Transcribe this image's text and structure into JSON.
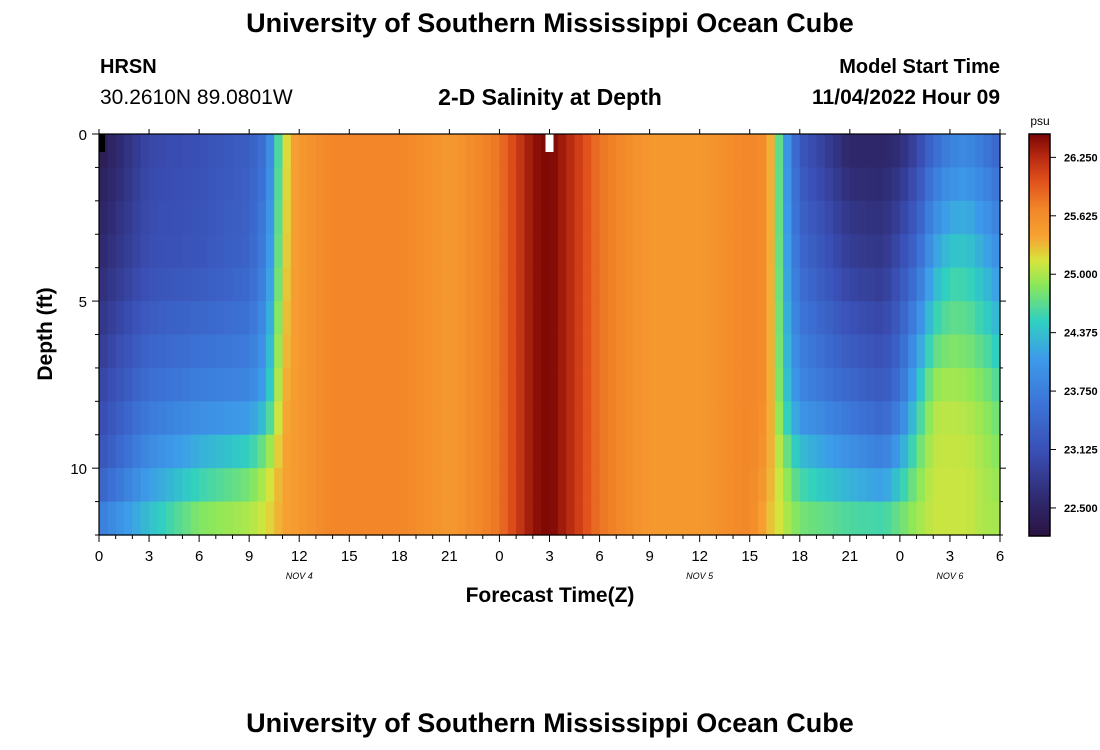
{
  "header": {
    "title": "University of Southern Mississippi Ocean Cube",
    "station": "HRSN",
    "coordinates": "30.2610N  89.0801W",
    "subtitle": "2-D Salinity at Depth",
    "model_start_label": "Model Start Time",
    "model_start_value": "11/04/2022 Hour 09"
  },
  "footer": {
    "title": "University of Southern Mississippi Ocean Cube"
  },
  "chart_data": {
    "type": "heatmap",
    "title": "2-D Salinity at Depth",
    "xlabel": "Forecast Time(Z)",
    "ylabel": "Depth (ft)",
    "x_range_hours": [
      0,
      54
    ],
    "y_range_ft": [
      0,
      12
    ],
    "x_ticks": [
      {
        "hour": 0,
        "label": "0"
      },
      {
        "hour": 3,
        "label": "3"
      },
      {
        "hour": 6,
        "label": "6"
      },
      {
        "hour": 9,
        "label": "9"
      },
      {
        "hour": 12,
        "label": "12"
      },
      {
        "hour": 15,
        "label": "15"
      },
      {
        "hour": 18,
        "label": "18"
      },
      {
        "hour": 21,
        "label": "21"
      },
      {
        "hour": 24,
        "label": "0"
      },
      {
        "hour": 27,
        "label": "3"
      },
      {
        "hour": 30,
        "label": "6"
      },
      {
        "hour": 33,
        "label": "9"
      },
      {
        "hour": 36,
        "label": "12"
      },
      {
        "hour": 39,
        "label": "15"
      },
      {
        "hour": 42,
        "label": "18"
      },
      {
        "hour": 45,
        "label": "21"
      },
      {
        "hour": 48,
        "label": "0"
      },
      {
        "hour": 51,
        "label": "3"
      },
      {
        "hour": 54,
        "label": "6"
      }
    ],
    "y_ticks": [
      {
        "depth": 0,
        "label": "0"
      },
      {
        "depth": 5,
        "label": "5"
      },
      {
        "depth": 10,
        "label": "10"
      }
    ],
    "date_labels": [
      {
        "hour": 12,
        "label": "NOV 4"
      },
      {
        "hour": 36,
        "label": "NOV 5"
      },
      {
        "hour": 51,
        "label": "NOV 6"
      }
    ],
    "current_time_marker_hour": 27,
    "colorbar": {
      "units": "psu",
      "min": 22.2,
      "max": 26.5,
      "tick_values": [
        22.5,
        23.125,
        23.75,
        24.375,
        25.0,
        25.625,
        26.25
      ],
      "tick_labels": [
        "22.500",
        "23.125",
        "23.750",
        "24.375",
        "25.000",
        "25.625",
        "26.250"
      ]
    },
    "color_stops": [
      {
        "value": 22.2,
        "color": "#2a1440"
      },
      {
        "value": 22.6,
        "color": "#2f2a70"
      },
      {
        "value": 23.1,
        "color": "#3a4fb5"
      },
      {
        "value": 23.6,
        "color": "#3c73d6"
      },
      {
        "value": 24.1,
        "color": "#3d9bea"
      },
      {
        "value": 24.5,
        "color": "#30d0c0"
      },
      {
        "value": 24.9,
        "color": "#8ee858"
      },
      {
        "value": 25.15,
        "color": "#d8e43c"
      },
      {
        "value": 25.4,
        "color": "#f7a233"
      },
      {
        "value": 25.7,
        "color": "#f28628"
      },
      {
        "value": 26.0,
        "color": "#e0501c"
      },
      {
        "value": 26.25,
        "color": "#b72a10"
      },
      {
        "value": 26.5,
        "color": "#7a0505"
      }
    ],
    "salinity_time_hours": [
      0,
      3,
      6,
      9,
      10,
      10.5,
      11,
      11.5,
      12,
      14,
      18,
      21,
      24,
      25,
      26,
      27,
      28,
      29,
      30,
      33,
      36,
      39,
      40,
      40.5,
      41,
      41.5,
      42,
      45,
      47,
      48,
      49,
      50,
      51,
      52,
      53,
      54
    ],
    "salinity_depths_ft": [
      0,
      4,
      8,
      10,
      12
    ],
    "salinity_psu": [
      [
        22.3,
        22.6,
        23.0,
        23.2,
        23.9
      ],
      [
        23.0,
        23.1,
        23.6,
        24.0,
        24.5
      ],
      [
        23.1,
        23.2,
        23.8,
        24.4,
        25.0
      ],
      [
        23.3,
        23.4,
        23.9,
        24.7,
        25.1
      ],
      [
        23.6,
        23.8,
        24.2,
        25.0,
        25.2
      ],
      [
        24.2,
        24.4,
        24.8,
        25.2,
        25.3
      ],
      [
        25.0,
        25.1,
        25.3,
        25.4,
        25.4
      ],
      [
        25.35,
        25.4,
        25.45,
        25.45,
        25.45
      ],
      [
        25.5,
        25.5,
        25.5,
        25.5,
        25.5
      ],
      [
        25.7,
        25.7,
        25.7,
        25.7,
        25.7
      ],
      [
        25.7,
        25.7,
        25.7,
        25.7,
        25.7
      ],
      [
        25.5,
        25.5,
        25.5,
        25.5,
        25.5
      ],
      [
        25.8,
        25.8,
        25.8,
        25.8,
        25.8
      ],
      [
        26.1,
        26.1,
        26.1,
        26.1,
        26.1
      ],
      [
        26.4,
        26.4,
        26.4,
        26.4,
        26.4
      ],
      [
        26.5,
        26.5,
        26.5,
        26.5,
        26.5
      ],
      [
        26.3,
        26.3,
        26.3,
        26.3,
        26.3
      ],
      [
        26.05,
        26.05,
        26.05,
        26.05,
        26.05
      ],
      [
        25.8,
        25.8,
        25.8,
        25.8,
        25.8
      ],
      [
        25.5,
        25.5,
        25.5,
        25.5,
        25.5
      ],
      [
        25.5,
        25.5,
        25.5,
        25.5,
        25.5
      ],
      [
        25.7,
        25.7,
        25.7,
        25.7,
        25.7
      ],
      [
        25.6,
        25.6,
        25.6,
        25.5,
        25.3
      ],
      [
        25.1,
        25.1,
        25.1,
        25.2,
        25.2
      ],
      [
        24.3,
        24.4,
        24.6,
        25.0,
        25.1
      ],
      [
        23.7,
        23.9,
        24.2,
        24.7,
        25.0
      ],
      [
        23.2,
        23.5,
        23.9,
        24.5,
        24.9
      ],
      [
        22.5,
        22.9,
        23.5,
        24.1,
        24.8
      ],
      [
        22.5,
        22.8,
        23.3,
        23.9,
        24.8
      ],
      [
        22.6,
        23.1,
        23.6,
        24.3,
        24.9
      ],
      [
        22.9,
        23.5,
        24.4,
        24.8,
        25.0
      ],
      [
        23.4,
        24.2,
        25.0,
        25.1,
        25.1
      ],
      [
        23.7,
        24.5,
        25.05,
        25.1,
        25.1
      ],
      [
        23.8,
        24.5,
        25.0,
        25.1,
        25.1
      ],
      [
        23.6,
        24.3,
        24.9,
        25.0,
        25.0
      ],
      [
        23.3,
        24.0,
        24.7,
        24.9,
        25.0
      ]
    ]
  }
}
